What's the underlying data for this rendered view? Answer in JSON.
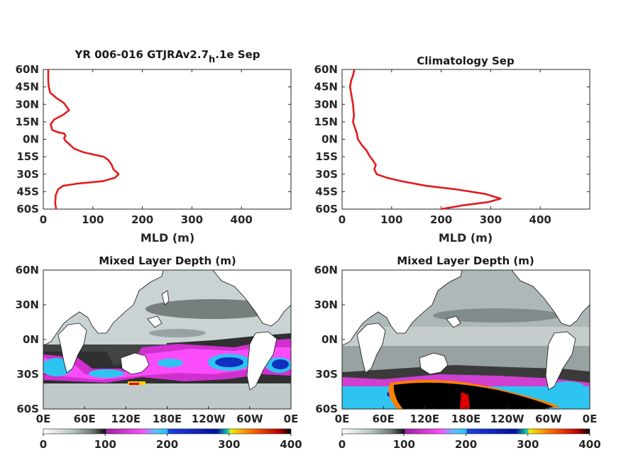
{
  "chart_data": [
    {
      "type": "line",
      "panel": "top-left",
      "title": "YR 006-016 GTJRAv2.7",
      "title_subscript": "h",
      "title_suffix": ".1e Sep",
      "xlabel": "MLD (m)",
      "ylabel": "",
      "xlim": [
        0,
        500
      ],
      "ylim": [
        -60,
        60
      ],
      "xticks": [
        "0",
        "100",
        "200",
        "300",
        "400"
      ],
      "yticks": [
        "60N",
        "45N",
        "30N",
        "15N",
        "0N",
        "15S",
        "30S",
        "45S",
        "60S"
      ],
      "series": [
        {
          "color": "#e41a1c",
          "points": [
            [
              10,
              60
            ],
            [
              10,
              55
            ],
            [
              10,
              50
            ],
            [
              11,
              45
            ],
            [
              14,
              40
            ],
            [
              25,
              36
            ],
            [
              42,
              31
            ],
            [
              52,
              25
            ],
            [
              40,
              21
            ],
            [
              22,
              17
            ],
            [
              15,
              13
            ],
            [
              18,
              8
            ],
            [
              30,
              6
            ],
            [
              42,
              5
            ],
            [
              45,
              3
            ],
            [
              42,
              1
            ],
            [
              44,
              -1
            ],
            [
              52,
              -4
            ],
            [
              62,
              -8
            ],
            [
              80,
              -11
            ],
            [
              100,
              -13
            ],
            [
              122,
              -15
            ],
            [
              132,
              -18
            ],
            [
              138,
              -22
            ],
            [
              142,
              -26
            ],
            [
              150,
              -29
            ],
            [
              152,
              -30
            ],
            [
              145,
              -33
            ],
            [
              120,
              -36
            ],
            [
              70,
              -38
            ],
            [
              40,
              -40
            ],
            [
              30,
              -43
            ],
            [
              25,
              -48
            ],
            [
              24,
              -55
            ],
            [
              26,
              -60
            ]
          ]
        }
      ]
    },
    {
      "type": "line",
      "panel": "top-right",
      "title": "Climatology Sep",
      "xlabel": "MLD (m)",
      "ylabel": "",
      "xlim": [
        0,
        500
      ],
      "ylim": [
        -60,
        60
      ],
      "xticks": [
        "0",
        "100",
        "200",
        "300",
        "400"
      ],
      "yticks": [
        "60N",
        "45N",
        "30N",
        "15N",
        "0N",
        "15S",
        "30S",
        "45S",
        "60S"
      ],
      "series": [
        {
          "color": "#e41a1c",
          "points": [
            [
              25,
              60
            ],
            [
              22,
              55
            ],
            [
              18,
              50
            ],
            [
              16,
              45
            ],
            [
              18,
              40
            ],
            [
              20,
              35
            ],
            [
              22,
              30
            ],
            [
              23,
              25
            ],
            [
              24,
              20
            ],
            [
              22,
              15
            ],
            [
              26,
              10
            ],
            [
              30,
              5
            ],
            [
              32,
              0
            ],
            [
              40,
              -5
            ],
            [
              50,
              -10
            ],
            [
              55,
              -14
            ],
            [
              62,
              -18
            ],
            [
              68,
              -22
            ],
            [
              65,
              -26
            ],
            [
              70,
              -30
            ],
            [
              90,
              -33
            ],
            [
              120,
              -36
            ],
            [
              170,
              -40
            ],
            [
              230,
              -43
            ],
            [
              290,
              -47
            ],
            [
              320,
              -51
            ],
            [
              295,
              -54
            ],
            [
              240,
              -57
            ],
            [
              200,
              -60
            ]
          ]
        }
      ]
    },
    {
      "type": "heatmap",
      "panel": "bottom-left",
      "title": "Mixed Layer Depth (m)",
      "xticks": [
        "0E",
        "60E",
        "120E",
        "180E",
        "120W",
        "60W",
        "0E"
      ],
      "yticks": [
        "60N",
        "30N",
        "0N",
        "30S",
        "60S"
      ],
      "colorbar": {
        "ticks": [
          "0",
          "100",
          "200",
          "300",
          "400"
        ],
        "range": [
          0,
          400
        ]
      }
    },
    {
      "type": "heatmap",
      "panel": "bottom-right",
      "title": "Mixed Layer Depth (m)",
      "xticks": [
        "0E",
        "60E",
        "120E",
        "180E",
        "120W",
        "60W",
        "0E"
      ],
      "yticks": [
        "60N",
        "30N",
        "0N",
        "30S",
        "60S"
      ],
      "colorbar": {
        "ticks": [
          "0",
          "100",
          "200",
          "300",
          "400"
        ],
        "range": [
          0,
          400
        ]
      }
    }
  ],
  "colors": {
    "profile": "#e41a1c",
    "ocean_base": "#c9d3d3",
    "land": "#ffffff",
    "colorbar": [
      "#ffffff",
      "#9aa5a5",
      "#1e1e1e",
      "#b030b0",
      "#ff40ff",
      "#2ec4f0",
      "#0030d0",
      "#20d0a0",
      "#ffff00",
      "#ff8000",
      "#e00000",
      "#000000"
    ]
  }
}
